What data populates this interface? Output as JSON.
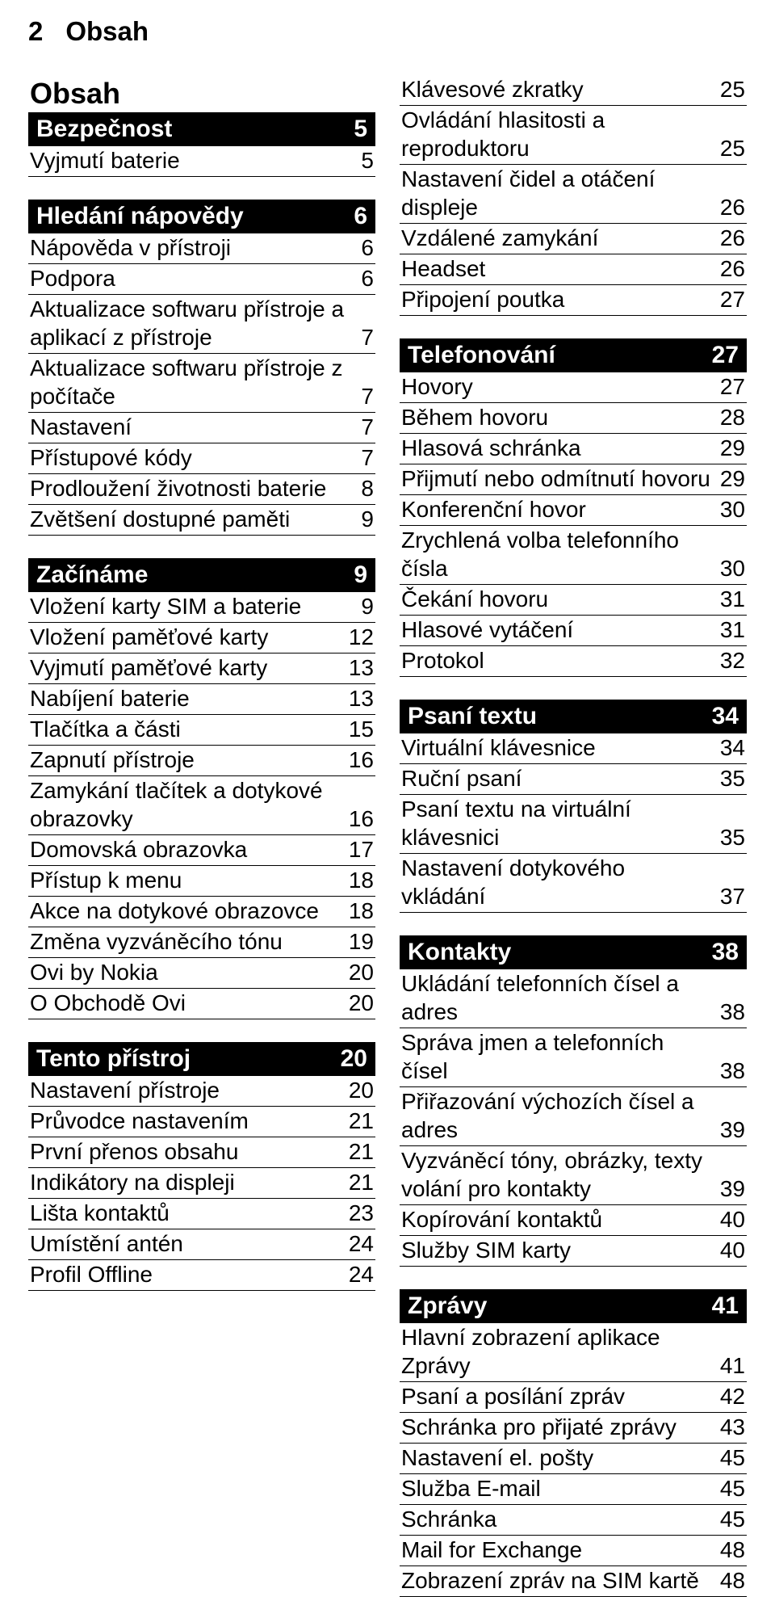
{
  "header": {
    "page_number": "2",
    "title": "Obsah"
  },
  "main_title": "Obsah",
  "left_column": [
    {
      "type": "main_title",
      "text": "Obsah"
    },
    {
      "type": "section",
      "title": "Bezpečnost",
      "page": "5"
    },
    {
      "type": "item",
      "label": "Vyjmutí baterie",
      "page": "5"
    },
    {
      "type": "gap"
    },
    {
      "type": "section",
      "title": "Hledání nápovědy",
      "page": "6"
    },
    {
      "type": "item",
      "label": "Nápověda v přístroji",
      "page": "6"
    },
    {
      "type": "item",
      "label": "Podpora",
      "page": "6"
    },
    {
      "type": "item",
      "label": "Aktualizace softwaru přístroje a aplikací z přístroje",
      "page": "7"
    },
    {
      "type": "item",
      "label": "Aktualizace softwaru přístroje z počítače",
      "page": "7"
    },
    {
      "type": "item",
      "label": "Nastavení",
      "page": "7"
    },
    {
      "type": "item",
      "label": "Přístupové kódy",
      "page": "7"
    },
    {
      "type": "item",
      "label": "Prodloužení životnosti baterie",
      "page": "8"
    },
    {
      "type": "item",
      "label": "Zvětšení dostupné paměti",
      "page": "9"
    },
    {
      "type": "gap"
    },
    {
      "type": "section",
      "title": "Začínáme",
      "page": "9"
    },
    {
      "type": "item",
      "label": "Vložení karty SIM a baterie",
      "page": "9"
    },
    {
      "type": "item",
      "label": "Vložení paměťové karty",
      "page": "12"
    },
    {
      "type": "item",
      "label": "Vyjmutí paměťové karty",
      "page": "13"
    },
    {
      "type": "item",
      "label": "Nabíjení baterie",
      "page": "13"
    },
    {
      "type": "item",
      "label": "Tlačítka a části",
      "page": "15"
    },
    {
      "type": "item",
      "label": "Zapnutí přístroje",
      "page": "16"
    },
    {
      "type": "item",
      "label": "Zamykání tlačítek a dotykové obrazovky",
      "page": "16"
    },
    {
      "type": "item",
      "label": "Domovská obrazovka",
      "page": "17"
    },
    {
      "type": "item",
      "label": "Přístup k menu",
      "page": "18"
    },
    {
      "type": "item",
      "label": "Akce na dotykové obrazovce",
      "page": "18"
    },
    {
      "type": "item",
      "label": "Změna vyzváněcího tónu",
      "page": "19"
    },
    {
      "type": "item",
      "label": "Ovi by Nokia",
      "page": "20"
    },
    {
      "type": "item",
      "label": "O Obchodě Ovi",
      "page": "20"
    },
    {
      "type": "gap"
    },
    {
      "type": "section",
      "title": "Tento přístroj",
      "page": "20"
    },
    {
      "type": "item",
      "label": "Nastavení přístroje",
      "page": "20"
    },
    {
      "type": "item",
      "label": "Průvodce nastavením",
      "page": "21"
    },
    {
      "type": "item",
      "label": "První přenos obsahu",
      "page": "21"
    },
    {
      "type": "item",
      "label": "Indikátory na displeji",
      "page": "21"
    },
    {
      "type": "item",
      "label": "Lišta kontaktů",
      "page": "23"
    },
    {
      "type": "item",
      "label": "Umístění antén",
      "page": "24"
    },
    {
      "type": "item",
      "label": "Profil Offline",
      "page": "24"
    }
  ],
  "right_column": [
    {
      "type": "item",
      "label": "Klávesové zkratky",
      "page": "25"
    },
    {
      "type": "item",
      "label": "Ovládání hlasitosti a reproduktoru",
      "page": "25"
    },
    {
      "type": "item",
      "label": "Nastavení čidel a otáčení displeje",
      "page": "26"
    },
    {
      "type": "item",
      "label": "Vzdálené zamykání",
      "page": "26"
    },
    {
      "type": "item",
      "label": "Headset",
      "page": "26"
    },
    {
      "type": "item",
      "label": "Připojení poutka",
      "page": "27"
    },
    {
      "type": "gap"
    },
    {
      "type": "section",
      "title": "Telefonování",
      "page": "27"
    },
    {
      "type": "item",
      "label": "Hovory",
      "page": "27"
    },
    {
      "type": "item",
      "label": "Během hovoru",
      "page": "28"
    },
    {
      "type": "item",
      "label": "Hlasová schránka",
      "page": "29"
    },
    {
      "type": "item",
      "label": "Přijmutí nebo odmítnutí hovoru",
      "page": "29"
    },
    {
      "type": "item",
      "label": "Konferenční hovor",
      "page": "30"
    },
    {
      "type": "item",
      "label": "Zrychlená volba telefonního čísla",
      "page": "30"
    },
    {
      "type": "item",
      "label": "Čekání hovoru",
      "page": "31"
    },
    {
      "type": "item",
      "label": "Hlasové vytáčení",
      "page": "31"
    },
    {
      "type": "item",
      "label": "Protokol",
      "page": "32"
    },
    {
      "type": "gap"
    },
    {
      "type": "section",
      "title": "Psaní textu",
      "page": "34"
    },
    {
      "type": "item",
      "label": "Virtuální klávesnice",
      "page": "34"
    },
    {
      "type": "item",
      "label": "Ruční psaní",
      "page": "35"
    },
    {
      "type": "item",
      "label": "Psaní textu na virtuální klávesnici",
      "page": "35"
    },
    {
      "type": "item",
      "label": "Nastavení dotykového vkládání",
      "page": "37"
    },
    {
      "type": "gap"
    },
    {
      "type": "section",
      "title": "Kontakty",
      "page": "38"
    },
    {
      "type": "item",
      "label": "Ukládání telefonních čísel a adres",
      "page": "38"
    },
    {
      "type": "item",
      "label": "Správa jmen a telefonních čísel",
      "page": "38"
    },
    {
      "type": "item",
      "label": "Přiřazování výchozích čísel a adres",
      "page": "39"
    },
    {
      "type": "item",
      "label": "Vyzváněcí tóny, obrázky, texty volání pro kontakty",
      "page": "39"
    },
    {
      "type": "item",
      "label": "Kopírování kontaktů",
      "page": "40"
    },
    {
      "type": "item",
      "label": "Služby SIM karty",
      "page": "40"
    },
    {
      "type": "gap"
    },
    {
      "type": "section",
      "title": "Zprávy",
      "page": "41"
    },
    {
      "type": "item",
      "label": "Hlavní zobrazení aplikace Zprávy",
      "page": "41"
    },
    {
      "type": "item",
      "label": "Psaní a posílání zpráv",
      "page": "42"
    },
    {
      "type": "item",
      "label": "Schránka pro přijaté zprávy",
      "page": "43"
    },
    {
      "type": "item",
      "label": "Nastavení el. pošty",
      "page": "45"
    },
    {
      "type": "item",
      "label": "Služba E-mail",
      "page": "45"
    },
    {
      "type": "item",
      "label": "Schránka",
      "page": "45"
    },
    {
      "type": "item",
      "label": "Mail for Exchange",
      "page": "48"
    },
    {
      "type": "item",
      "label": "Zobrazení zpráv na SIM kartě",
      "page": "48"
    }
  ]
}
